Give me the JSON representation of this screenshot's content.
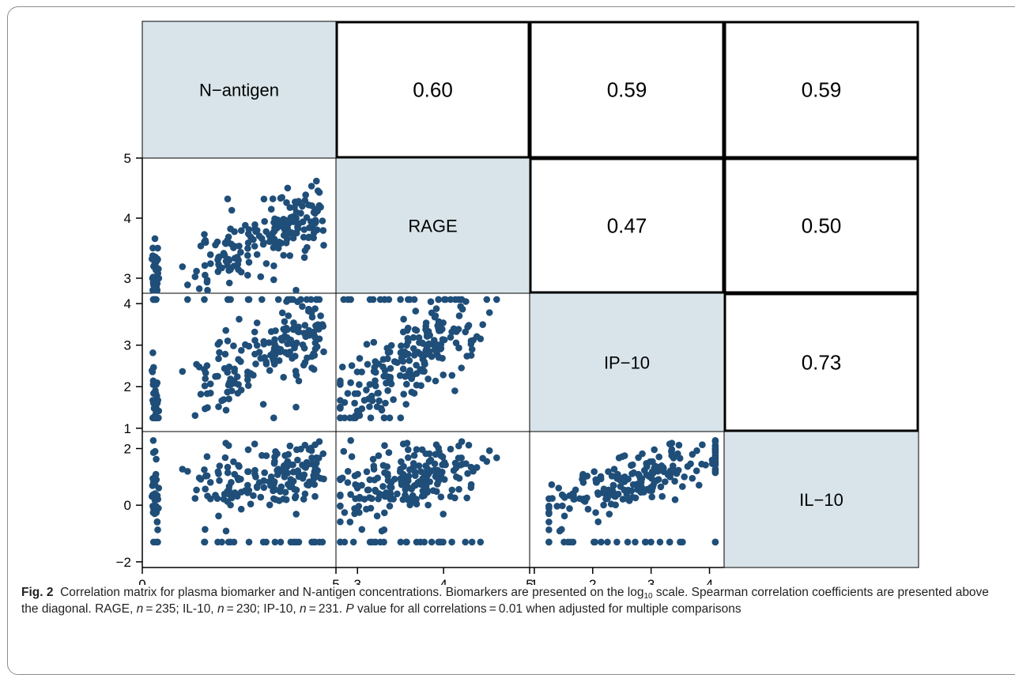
{
  "chart_data": {
    "type": "scatter-matrix",
    "variables": [
      "N−antigen",
      "RAGE",
      "IP−10",
      "IL−10"
    ],
    "correlations": [
      {
        "row": 0,
        "col": 1,
        "label": "0.60"
      },
      {
        "row": 0,
        "col": 2,
        "label": "0.59"
      },
      {
        "row": 0,
        "col": 3,
        "label": "0.59"
      },
      {
        "row": 1,
        "col": 2,
        "label": "0.47"
      },
      {
        "row": 1,
        "col": 3,
        "label": "0.50"
      },
      {
        "row": 2,
        "col": 3,
        "label": "0.73"
      }
    ],
    "x_axes": [
      {
        "variable": "N−antigen",
        "range": [
          0,
          5
        ],
        "ticks": [
          "0",
          "5"
        ]
      },
      {
        "variable": "RAGE",
        "range": [
          2.75,
          5
        ],
        "ticks": [
          "3",
          "4",
          "5"
        ]
      },
      {
        "variable": "IP−10",
        "range": [
          0.92,
          4.25
        ],
        "ticks": [
          "1",
          "2",
          "3",
          "4"
        ]
      }
    ],
    "y_axes": [
      {
        "variable": "RAGE",
        "range": [
          2.75,
          5
        ],
        "ticks": [
          "3",
          "4",
          "5"
        ]
      },
      {
        "variable": "IP−10",
        "range": [
          0.92,
          4.25
        ],
        "ticks": [
          "1",
          "2",
          "3",
          "4"
        ]
      },
      {
        "variable": "IL−10",
        "range": [
          -2.2,
          2.6
        ],
        "ticks": [
          "−2",
          "0",
          "2"
        ]
      }
    ],
    "panels": [
      {
        "row": 1,
        "col": 0,
        "x": "N−antigen",
        "y": "RAGE"
      },
      {
        "row": 2,
        "col": 0,
        "x": "N−antigen",
        "y": "IP−10"
      },
      {
        "row": 2,
        "col": 1,
        "x": "RAGE",
        "y": "IP−10"
      },
      {
        "row": 3,
        "col": 0,
        "x": "N−antigen",
        "y": "IL−10"
      },
      {
        "row": 3,
        "col": 1,
        "x": "RAGE",
        "y": "IL−10"
      },
      {
        "row": 3,
        "col": 2,
        "x": "IP−10",
        "y": "IL−10"
      }
    ],
    "point_color": "#1f4e79",
    "diagonal_fill": "#d8e4ea",
    "grid": false
  },
  "caption": {
    "fig_label": "Fig. 2",
    "text_1": "Correlation matrix for plasma biomarker and N-antigen concentrations. Biomarkers are presented on the log",
    "log_sub": "10",
    "text_2": " scale. Spearman correlation coefficients are presented above the diagonal. RAGE, ",
    "n": "n",
    "rage_n": " = 235; IL-10, ",
    "il10_n": " = 230; IP-10, ",
    "ip10_n": " = 231. ",
    "p_label": "P",
    "text_3": " value for all correlations = 0.01 when adjusted for multiple comparisons"
  }
}
